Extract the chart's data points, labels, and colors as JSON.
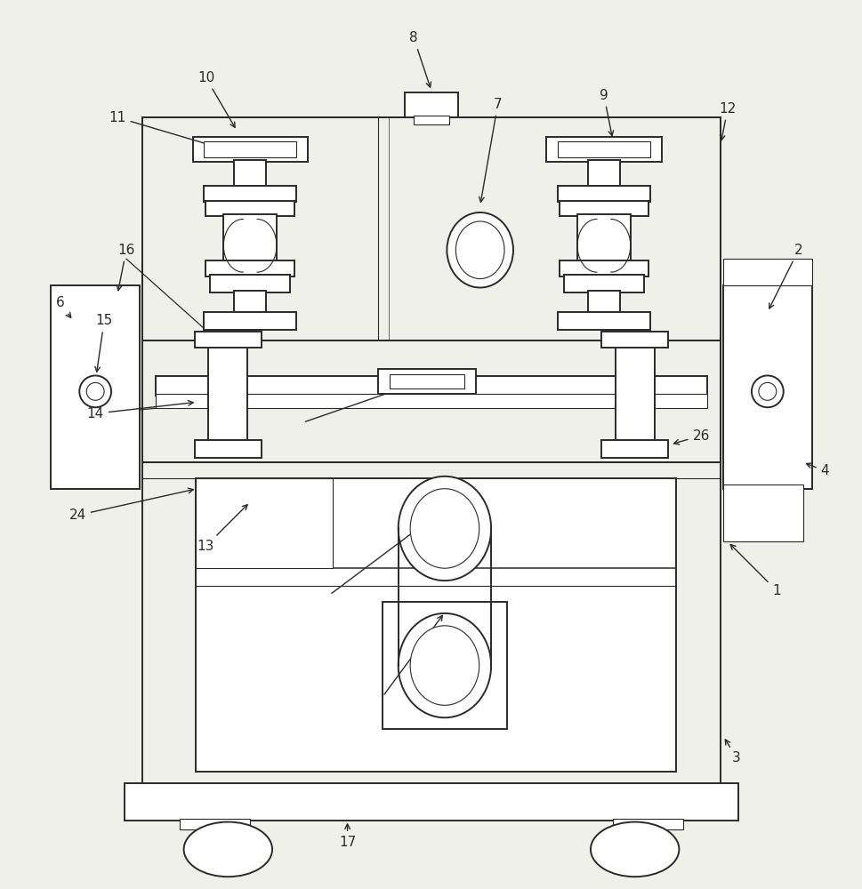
{
  "bg_color": "#f0f0eb",
  "line_color": "#2a2a2a",
  "fig_width": 9.7,
  "fig_height": 10.0,
  "lw_main": 1.4,
  "lw_thin": 0.8,
  "lw_med": 1.1
}
